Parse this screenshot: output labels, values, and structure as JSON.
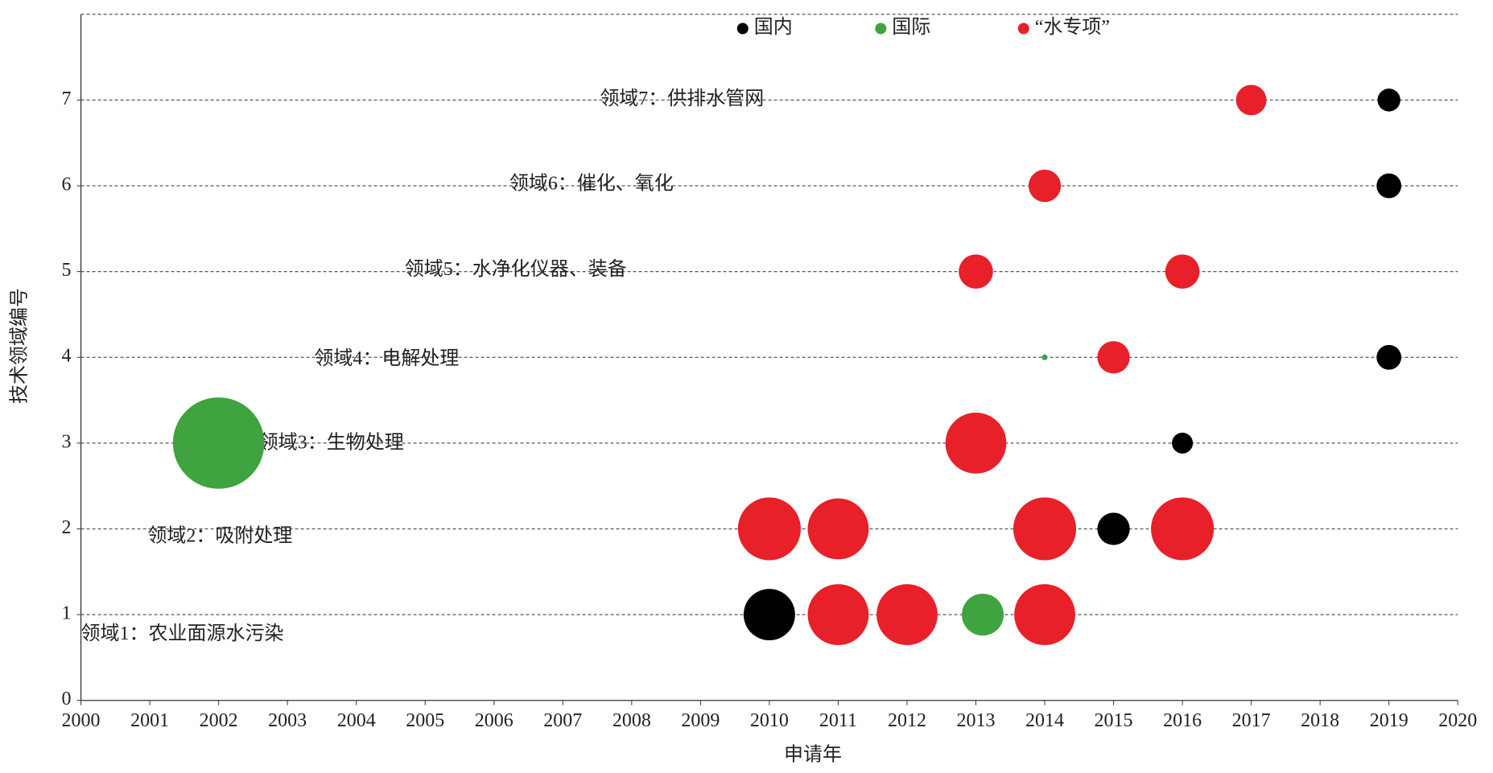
{
  "chart_data": {
    "type": "scatter",
    "x_label": "申请年",
    "y_label": "技术领域编号",
    "xlim": [
      2000,
      2020
    ],
    "xticks": [
      2000,
      2001,
      2002,
      2003,
      2004,
      2005,
      2006,
      2007,
      2008,
      2009,
      2010,
      2011,
      2012,
      2013,
      2014,
      2015,
      2016,
      2017,
      2018,
      2019,
      2020
    ],
    "ylim": [
      0,
      8
    ],
    "yticks": [
      0,
      1,
      2,
      3,
      4,
      5,
      6,
      7
    ],
    "grid": true,
    "legend": "top",
    "annotations": [
      "领域1：农业面源水污染",
      "领域2：吸附处理",
      "领域3：生物处理",
      "领域4：电解处理",
      "领域5：水净化仪器、装备",
      "领域6：催化、氧化",
      "领域7：供排水管网"
    ],
    "series": [
      {
        "name": "国内",
        "color": "#000000",
        "x": [
          2019,
          2019,
          2019,
          2016,
          2015,
          2010
        ],
        "y": [
          7,
          6,
          4,
          3,
          2,
          1
        ],
        "sizes": [
          12,
          13,
          13,
          11,
          17,
          27
        ]
      },
      {
        "name": "国际",
        "color": "#3fa33f",
        "x": [
          2014,
          2002,
          2013.1
        ],
        "y": [
          4,
          3,
          1
        ],
        "sizes": [
          3,
          48,
          22
        ]
      },
      {
        "name": "“水专项”",
        "color": "#e8202a",
        "x": [
          2017,
          2014,
          2013,
          2016,
          2015,
          2013,
          2010,
          2011,
          2014,
          2016,
          2011,
          2012,
          2014
        ],
        "y": [
          7,
          6,
          5,
          5,
          4,
          3,
          2,
          2,
          2,
          2,
          1,
          1,
          1
        ],
        "sizes": [
          16,
          17,
          18,
          18,
          17,
          32,
          33,
          32,
          33,
          33,
          32,
          32,
          32
        ]
      }
    ]
  }
}
